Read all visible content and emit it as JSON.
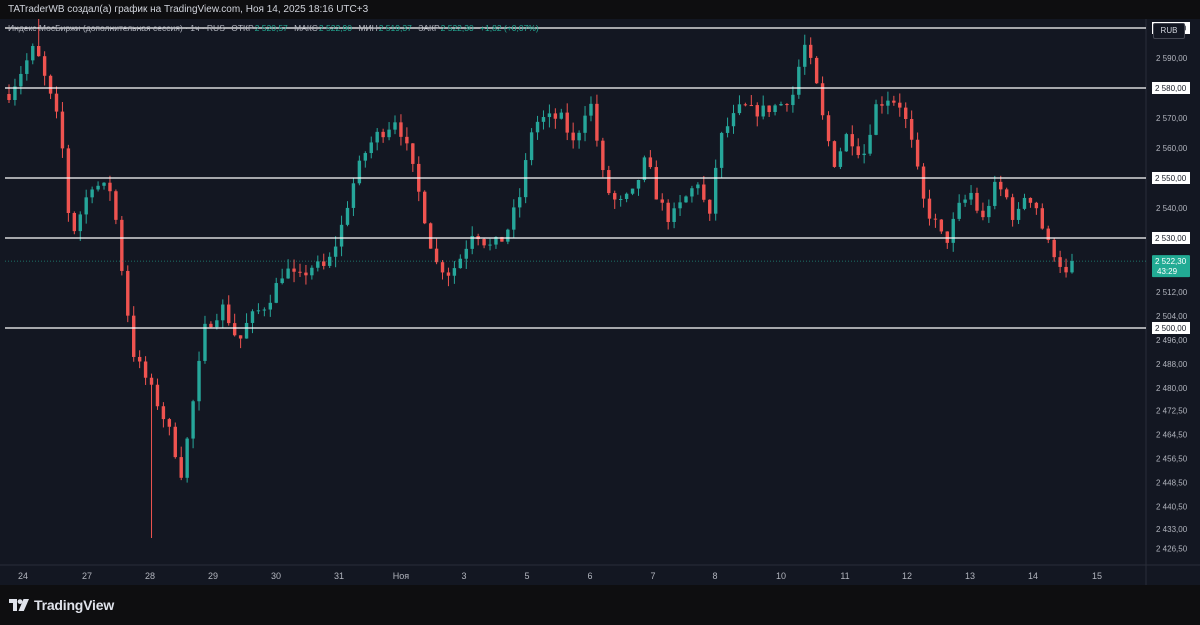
{
  "header": {
    "credit": "TATraderWB создал(а) график на TradingView.com, Ноя 14, 2025 18:16 UTC+3"
  },
  "legend": {
    "instrument": "Индекс МосБиржи (дополнительная сессия) · 1ч · RUS",
    "open_label": "ОТКР",
    "open": "2 520,57",
    "high_label": "МАКС",
    "high": "2 522,90",
    "low_label": "МИН",
    "low": "2 519,37",
    "close_label": "ЗАКР",
    "close": "2 522,30",
    "change": "+1,82 (+0,07%)"
  },
  "currency_button": "RUB",
  "footer": {
    "brand": "TradingView"
  },
  "colors": {
    "up": "#26a69a",
    "down": "#ef5350",
    "background": "#131722",
    "level_line": "#ffffff",
    "price_tag": "#22ab94"
  },
  "chart_data": {
    "type": "candlestick",
    "timeframe": "1h",
    "ylim": [
      2421,
      2603
    ],
    "price_ticks": [
      {
        "value": 2600,
        "label": "2 600,00"
      },
      {
        "value": 2590,
        "label": "2 590,00"
      },
      {
        "value": 2580,
        "label": "2 580,00"
      },
      {
        "value": 2570,
        "label": "2 570,00"
      },
      {
        "value": 2560,
        "label": "2 560,00"
      },
      {
        "value": 2550,
        "label": "2 550,00"
      },
      {
        "value": 2540,
        "label": "2 540,00"
      },
      {
        "value": 2530,
        "label": "2 530,00"
      },
      {
        "value": 2512,
        "label": "2 512,00"
      },
      {
        "value": 2504,
        "label": "2 504,00"
      },
      {
        "value": 2500,
        "label": "2 500,00"
      },
      {
        "value": 2496,
        "label": "2 496,00"
      },
      {
        "value": 2488,
        "label": "2 488,00"
      },
      {
        "value": 2480,
        "label": "2 480,00"
      },
      {
        "value": 2472.5,
        "label": "2 472,50"
      },
      {
        "value": 2464.5,
        "label": "2 464,50"
      },
      {
        "value": 2456.5,
        "label": "2 456,50"
      },
      {
        "value": 2448.5,
        "label": "2 448,50"
      },
      {
        "value": 2440.5,
        "label": "2 440,50"
      },
      {
        "value": 2433,
        "label": "2 433,00"
      },
      {
        "value": 2426.5,
        "label": "2 426,50"
      }
    ],
    "levels": [
      {
        "value": 2600,
        "label": "2 600,00"
      },
      {
        "value": 2580,
        "label": "2 580,00"
      },
      {
        "value": 2550,
        "label": "2 550,00"
      },
      {
        "value": 2530,
        "label": "2 530,00"
      },
      {
        "value": 2500,
        "label": "2 500,00"
      }
    ],
    "last_price": {
      "value": 2522.3,
      "label": "2 522,30",
      "countdown": "43:29"
    },
    "x_labels": [
      "24",
      "27",
      "28",
      "29",
      "30",
      "31",
      "Ноя",
      "3",
      "5",
      "6",
      "7",
      "8",
      "10",
      "11",
      "12",
      "13",
      "14",
      "15"
    ],
    "path": [
      [
        0,
        2578
      ],
      [
        1.0,
        2594
      ],
      [
        2.0,
        2566
      ],
      [
        2.4,
        2530
      ],
      [
        3.2,
        2548
      ],
      [
        4.0,
        2546
      ],
      [
        4.4,
        2518
      ],
      [
        4.8,
        2492
      ],
      [
        5.6,
        2478
      ],
      [
        6.2,
        2466
      ],
      [
        6.7,
        2451
      ],
      [
        7.0,
        2468
      ],
      [
        7.6,
        2500
      ],
      [
        8.3,
        2507
      ],
      [
        8.9,
        2495
      ],
      [
        9.3,
        2503
      ],
      [
        10.0,
        2508
      ],
      [
        10.7,
        2520
      ],
      [
        11.2,
        2516
      ],
      [
        11.8,
        2521
      ],
      [
        12.3,
        2520
      ],
      [
        12.8,
        2531
      ],
      [
        13.3,
        2547
      ],
      [
        13.7,
        2557
      ],
      [
        14.2,
        2564
      ],
      [
        14.6,
        2566
      ],
      [
        15.0,
        2570
      ],
      [
        15.5,
        2558
      ],
      [
        16.0,
        2541
      ],
      [
        16.5,
        2522
      ],
      [
        17.1,
        2518
      ],
      [
        17.6,
        2525
      ],
      [
        18.0,
        2533
      ],
      [
        18.6,
        2527
      ],
      [
        19.2,
        2530
      ],
      [
        19.8,
        2544
      ],
      [
        20.3,
        2568
      ],
      [
        20.8,
        2570
      ],
      [
        21.4,
        2570
      ],
      [
        21.9,
        2561
      ],
      [
        22.5,
        2577
      ],
      [
        23.1,
        2547
      ],
      [
        23.6,
        2541
      ],
      [
        24.2,
        2545
      ],
      [
        24.7,
        2557
      ],
      [
        25.1,
        2544
      ],
      [
        25.6,
        2536
      ],
      [
        26.2,
        2543
      ],
      [
        26.8,
        2550
      ],
      [
        27.1,
        2532
      ],
      [
        27.5,
        2562
      ],
      [
        27.9,
        2568
      ],
      [
        28.4,
        2574
      ],
      [
        28.9,
        2572
      ],
      [
        29.4,
        2573
      ],
      [
        30.0,
        2575
      ],
      [
        30.4,
        2578
      ],
      [
        30.8,
        2595
      ],
      [
        31.2,
        2585
      ],
      [
        31.6,
        2567
      ],
      [
        32.0,
        2555
      ],
      [
        32.5,
        2565
      ],
      [
        33.1,
        2557
      ],
      [
        33.6,
        2574
      ],
      [
        34.1,
        2577
      ],
      [
        34.6,
        2574
      ],
      [
        35.0,
        2561
      ],
      [
        35.5,
        2540
      ],
      [
        35.9,
        2535
      ],
      [
        36.3,
        2528
      ],
      [
        36.8,
        2540
      ],
      [
        37.3,
        2545
      ],
      [
        37.7,
        2535
      ],
      [
        38.2,
        2547
      ],
      [
        38.6,
        2545
      ],
      [
        39.0,
        2535
      ],
      [
        39.4,
        2545
      ],
      [
        39.8,
        2541
      ],
      [
        40.2,
        2529
      ],
      [
        40.6,
        2524
      ],
      [
        41.0,
        2517
      ],
      [
        41.2,
        2522.3
      ]
    ],
    "seed": 7
  }
}
